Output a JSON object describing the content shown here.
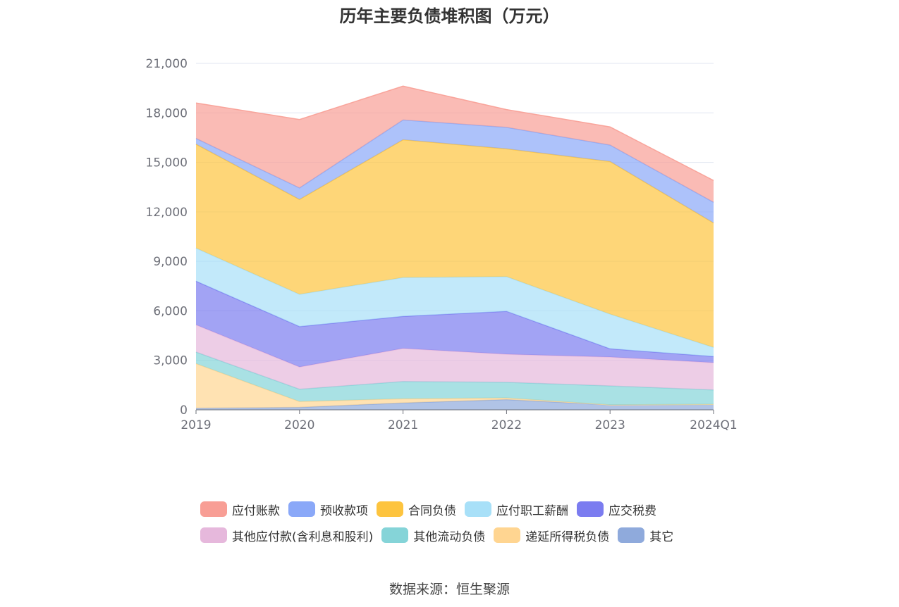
{
  "chart_data": {
    "type": "area",
    "stacked": true,
    "title": "历年主要负债堆积图（万元）",
    "categories": [
      "2019",
      "2020",
      "2021",
      "2022",
      "2023",
      "2024Q1"
    ],
    "ylim": [
      0,
      21000
    ],
    "yticks": [
      0,
      3000,
      6000,
      9000,
      12000,
      15000,
      18000,
      21000
    ],
    "ytick_labels": [
      "0",
      "3,000",
      "6,000",
      "9,000",
      "12,000",
      "15,000",
      "18,000",
      "21,000"
    ],
    "grid": true,
    "legend_position": "bottom",
    "series": [
      {
        "name": "其它",
        "color": "#8faadc",
        "values": [
          100,
          150,
          420,
          620,
          300,
          330
        ]
      },
      {
        "name": "递延所得税负债",
        "color": "#ffd591",
        "values": [
          2700,
          350,
          250,
          100,
          0,
          0
        ]
      },
      {
        "name": "其他流动负债",
        "color": "#85d4d8",
        "values": [
          700,
          750,
          1050,
          950,
          1150,
          880
        ]
      },
      {
        "name": "其他应付款(含利息和股利)",
        "color": "#e6b8dc",
        "values": [
          1650,
          1350,
          2000,
          1700,
          1750,
          1650
        ]
      },
      {
        "name": "应交税费",
        "color": "#7b7cf0",
        "values": [
          2650,
          2450,
          1950,
          2600,
          500,
          370
        ]
      },
      {
        "name": "应付职工薪酬",
        "color": "#a8e0f8",
        "values": [
          2000,
          1950,
          2350,
          2100,
          2100,
          550
        ]
      },
      {
        "name": "合同负债",
        "color": "#fdc43f",
        "values": [
          6300,
          5750,
          8350,
          7750,
          9250,
          7550
        ]
      },
      {
        "name": "预收款项",
        "color": "#8aa8f8",
        "values": [
          350,
          700,
          1200,
          1300,
          1000,
          1250
        ]
      },
      {
        "name": "应付账款",
        "color": "#f89e95",
        "values": [
          2150,
          4150,
          2050,
          1080,
          1100,
          1320
        ]
      }
    ]
  },
  "legend": {
    "row1": [
      "应付账款",
      "预收款项",
      "合同负债",
      "应付职工薪酬",
      "应交税费"
    ],
    "row2": [
      "其他应付款(含利息和股利)",
      "其他流动负债",
      "递延所得税负债",
      "其它"
    ]
  },
  "source": "数据来源：恒生聚源"
}
